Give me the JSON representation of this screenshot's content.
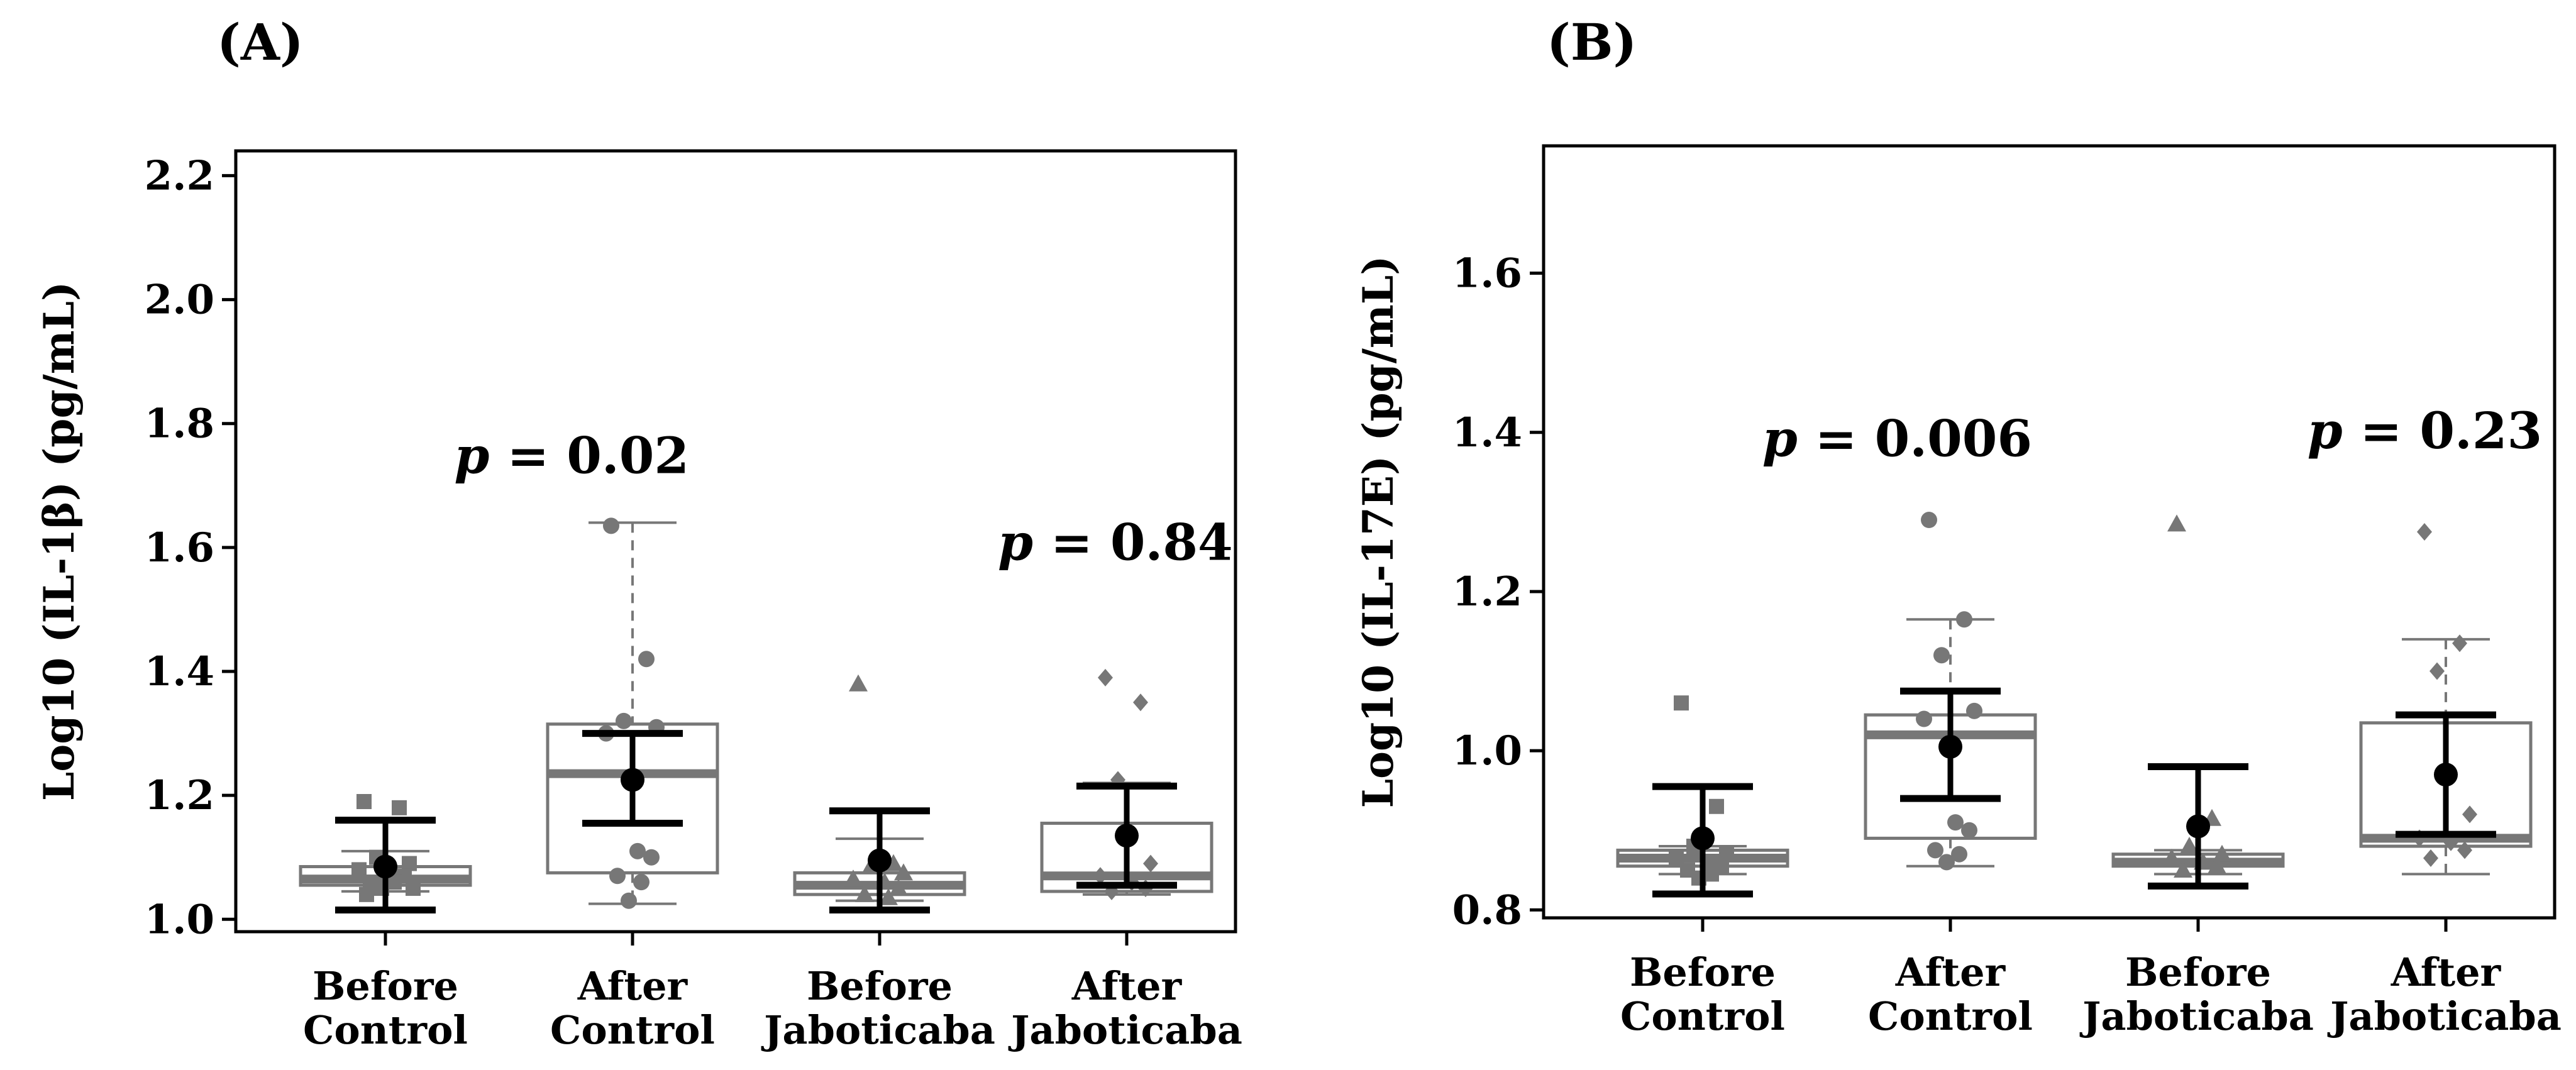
{
  "chart_data": [
    {
      "type": "box",
      "panel_label": "(A)",
      "ylabel": "Log10 (IL-1β) (pg/mL)",
      "ylim": [
        0.98,
        2.24
      ],
      "yticks": [
        "1.0",
        "1.2",
        "1.4",
        "1.6",
        "1.8",
        "2.0",
        "2.2"
      ],
      "categories": [
        {
          "line1": "Before",
          "line2": "Control"
        },
        {
          "line1": "After",
          "line2": "Control"
        },
        {
          "line1": "Before",
          "line2": "Jaboticaba"
        },
        {
          "line1": "After",
          "line2": "Jaboticaba"
        }
      ],
      "groups": [
        {
          "q1": 1.055,
          "median": 1.065,
          "q3": 1.085,
          "whisker_low": 1.045,
          "whisker_high": 1.11,
          "mean": 1.085,
          "ci_low": 1.015,
          "ci_high": 1.16,
          "marker": "square",
          "points": [
            1.19,
            1.18,
            1.1,
            1.09,
            1.08,
            1.07,
            1.07,
            1.06,
            1.06,
            1.05,
            1.05,
            1.04
          ]
        },
        {
          "q1": 1.075,
          "median": 1.235,
          "q3": 1.315,
          "whisker_low": 1.025,
          "whisker_high": 1.64,
          "mean": 1.225,
          "ci_low": 1.155,
          "ci_high": 1.3,
          "marker": "circle",
          "points": [
            1.635,
            1.42,
            1.32,
            1.31,
            1.3,
            1.11,
            1.1,
            1.07,
            1.06,
            1.03
          ]
        },
        {
          "q1": 1.04,
          "median": 1.055,
          "q3": 1.075,
          "whisker_low": 1.03,
          "whisker_high": 1.13,
          "mean": 1.095,
          "ci_low": 1.015,
          "ci_high": 1.175,
          "marker": "triangle",
          "points": [
            1.38,
            1.09,
            1.085,
            1.075,
            1.065,
            1.06,
            1.05,
            1.04,
            1.035
          ]
        },
        {
          "q1": 1.045,
          "median": 1.07,
          "q3": 1.155,
          "whisker_low": 1.04,
          "whisker_high": 1.22,
          "mean": 1.135,
          "ci_low": 1.055,
          "ci_high": 1.215,
          "marker": "diamond",
          "points": [
            1.39,
            1.35,
            1.225,
            1.09,
            1.07,
            1.06,
            1.05,
            1.045
          ]
        }
      ],
      "annotations": [
        {
          "p_letter": "p",
          "p_value": " = 0.02",
          "x_cat": 0.35,
          "y": 1.72
        },
        {
          "p_letter": "p",
          "p_value": " = 0.84",
          "x_cat": 2.55,
          "y": 1.58
        }
      ]
    },
    {
      "type": "box",
      "panel_label": "(B)",
      "ylabel": "Log10 (IL-17E) (pg/mL)",
      "ylim": [
        0.79,
        1.76
      ],
      "yticks": [
        "0.8",
        "1.0",
        "1.2",
        "1.4",
        "1.6"
      ],
      "categories": [
        {
          "line1": "Before",
          "line2": "Control"
        },
        {
          "line1": "After",
          "line2": "Control"
        },
        {
          "line1": "Before",
          "line2": "Jaboticaba"
        },
        {
          "line1": "After",
          "line2": "Jaboticaba"
        }
      ],
      "groups": [
        {
          "q1": 0.855,
          "median": 0.865,
          "q3": 0.875,
          "whisker_low": 0.845,
          "whisker_high": 0.88,
          "mean": 0.89,
          "ci_low": 0.82,
          "ci_high": 0.955,
          "marker": "square",
          "points": [
            1.06,
            0.93,
            0.88,
            0.87,
            0.865,
            0.86,
            0.855,
            0.85,
            0.845,
            0.84
          ]
        },
        {
          "q1": 0.89,
          "median": 1.02,
          "q3": 1.045,
          "whisker_low": 0.855,
          "whisker_high": 1.165,
          "mean": 1.005,
          "ci_low": 0.94,
          "ci_high": 1.075,
          "marker": "circle",
          "points": [
            1.29,
            1.165,
            1.12,
            1.05,
            1.04,
            0.91,
            0.9,
            0.875,
            0.87,
            0.86
          ]
        },
        {
          "q1": 0.855,
          "median": 0.86,
          "q3": 0.87,
          "whisker_low": 0.845,
          "whisker_high": 0.875,
          "mean": 0.905,
          "ci_low": 0.83,
          "ci_high": 0.98,
          "marker": "triangle",
          "points": [
            1.285,
            0.915,
            0.88,
            0.87,
            0.865,
            0.86,
            0.855,
            0.85
          ]
        },
        {
          "q1": 0.88,
          "median": 0.89,
          "q3": 1.035,
          "whisker_low": 0.845,
          "whisker_high": 1.14,
          "mean": 0.97,
          "ci_low": 0.895,
          "ci_high": 1.045,
          "marker": "diamond",
          "points": [
            1.275,
            1.135,
            1.1,
            0.92,
            0.89,
            0.885,
            0.875,
            0.865
          ]
        }
      ],
      "annotations": [
        {
          "p_letter": "p",
          "p_value": " = 0.006",
          "x_cat": 0.35,
          "y": 1.37
        },
        {
          "p_letter": "p",
          "p_value": " = 0.23",
          "x_cat": 2.55,
          "y": 1.38
        }
      ]
    }
  ]
}
